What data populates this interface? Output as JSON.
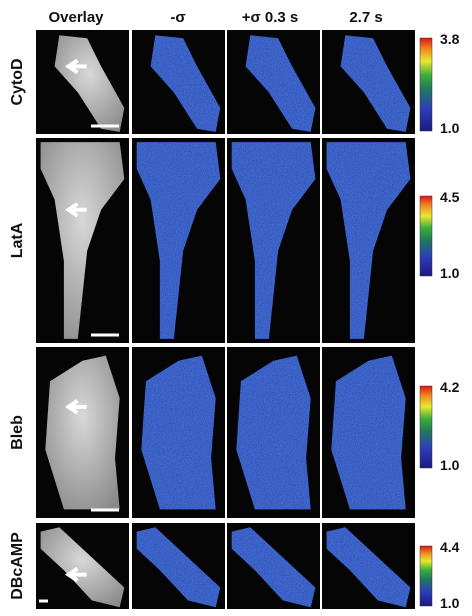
{
  "header": {
    "columns": [
      "Overlay",
      "-σ",
      "+σ 0.3 s",
      "2.7 s"
    ]
  },
  "rows": [
    {
      "label": "CytoD",
      "scale_max": "3.8",
      "scale_min": "1.0"
    },
    {
      "label": "LatA",
      "scale_max": "4.5",
      "scale_min": "1.0"
    },
    {
      "label": "Bleb",
      "scale_max": "4.2",
      "scale_min": "1.0"
    },
    {
      "label": "DBcAMP",
      "scale_max": "4.4",
      "scale_min": "1.0"
    }
  ]
}
